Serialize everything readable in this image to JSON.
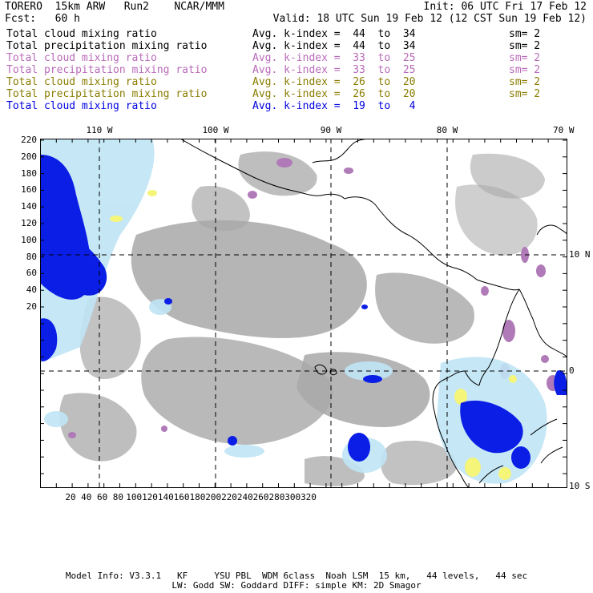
{
  "header": {
    "left_title": "TORERO  15km ARW   Run2    NCAR/MMM",
    "init": "Init: 06 UTC Fri 17 Feb 12",
    "fcst": "Fcst:   60 h",
    "valid": "Valid: 18 UTC Sun 19 Feb 12 (12 CST Sun 19 Feb 12)"
  },
  "legend": [
    {
      "name": "Total cloud mixing ratio",
      "kindex": "Avg. k-index =  44  to  34",
      "sm": "sm= 2",
      "color": "#000000"
    },
    {
      "name": "Total precipitation mixing ratio",
      "kindex": "Avg. k-index =  44  to  34",
      "sm": "sm= 2",
      "color": "#000000"
    },
    {
      "name": "Total cloud mixing ratio",
      "kindex": "Avg. k-index =  33  to  25",
      "sm": "sm= 2",
      "color": "#b96bb9"
    },
    {
      "name": "Total precipitation mixing ratio",
      "kindex": "Avg. k-index =  33  to  25",
      "sm": "sm= 2",
      "color": "#b96bb9"
    },
    {
      "name": "Total cloud mixing ratio",
      "kindex": "Avg. k-index =  26  to  20",
      "sm": "sm= 2",
      "color": "#8a7d00"
    },
    {
      "name": "Total precipitation mixing ratio",
      "kindex": "Avg. k-index =  26  to  20",
      "sm": "sm= 2",
      "color": "#8a7d00"
    },
    {
      "name": "Total cloud mixing ratio",
      "kindex": "Avg. k-index =  19  to   4",
      "sm": "",
      "color": "#0000e0"
    }
  ],
  "axes": {
    "top_lon_labels": [
      "110 W",
      "100 W",
      "90 W",
      "80 W",
      "70 W"
    ],
    "right_lat_labels": [
      "10 N",
      "0",
      "10 S"
    ],
    "left_grid_labels": [
      "220",
      "200",
      "180",
      "160",
      "140",
      "120",
      "100",
      "80",
      "60",
      "40",
      "20"
    ],
    "bottom_grid_labels": [
      "20",
      "40",
      "60",
      "80",
      "100",
      "120",
      "140",
      "160",
      "180",
      "200",
      "220",
      "240",
      "260",
      "280",
      "300",
      "320"
    ]
  },
  "footer": {
    "line1": "Model Info: V3.3.1   KF     YSU PBL  WDM 6class  Noah LSM  15 km,   44 levels,   44 sec",
    "line2": "LW: Godd SW: Goddard DIFF: simple KM: 2D Smagor"
  },
  "colors": {
    "gray_cloud": "#a8a8a8",
    "purple": "#b07ab8",
    "yellow": "#f5f57a",
    "light_blue": "#bfe4f5",
    "blue": "#0a1ee6"
  }
}
